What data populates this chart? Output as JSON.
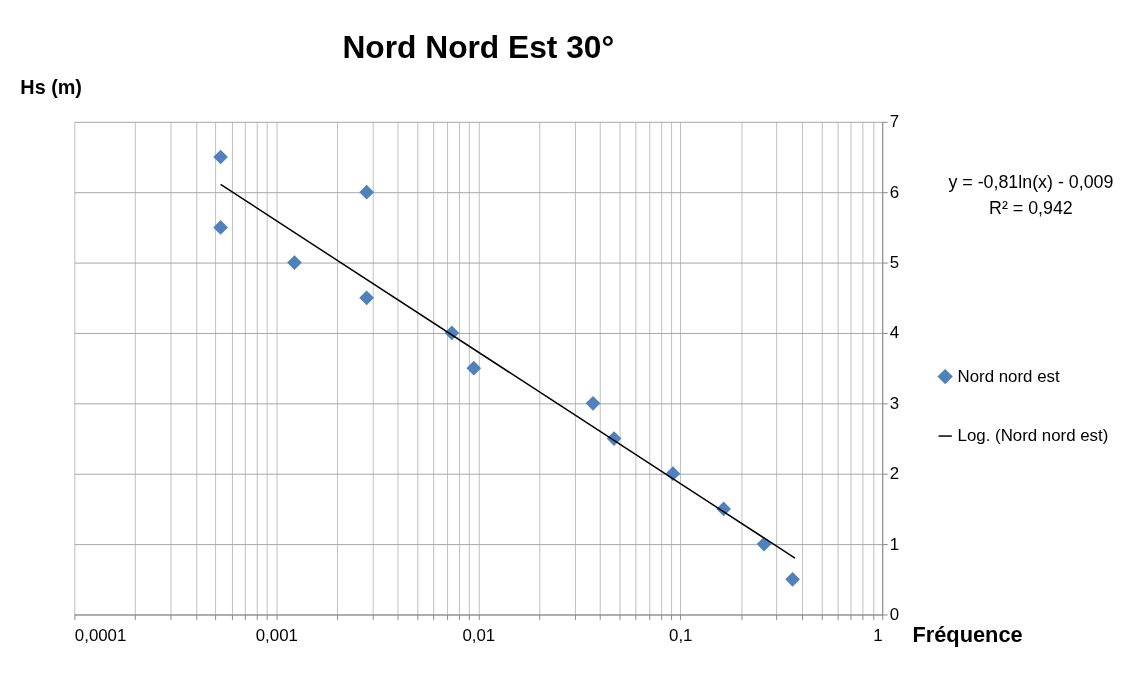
{
  "chart_data": {
    "type": "scatter",
    "title": "Nord Nord Est 30°",
    "xlabel": "Fréquence",
    "ylabel": "Hs (m)",
    "log": "x",
    "grid": true,
    "legend": "right",
    "xlim": [
      0.0001,
      1
    ],
    "ylim": [
      0,
      7
    ],
    "xticks": [
      {
        "value": 0.0001,
        "label": "0,0001"
      },
      {
        "value": 0.0002,
        "label": null
      },
      {
        "value": 0.0003,
        "label": null
      },
      {
        "value": 0.0004,
        "label": null
      },
      {
        "value": 0.0005,
        "label": null
      },
      {
        "value": 0.0006,
        "label": null
      },
      {
        "value": 0.0007,
        "label": null
      },
      {
        "value": 0.0008,
        "label": null
      },
      {
        "value": 0.0009,
        "label": null
      },
      {
        "value": 0.001,
        "label": "0,001"
      },
      {
        "value": 0.002,
        "label": null
      },
      {
        "value": 0.003,
        "label": null
      },
      {
        "value": 0.004,
        "label": null
      },
      {
        "value": 0.005,
        "label": null
      },
      {
        "value": 0.006,
        "label": null
      },
      {
        "value": 0.007,
        "label": null
      },
      {
        "value": 0.008,
        "label": null
      },
      {
        "value": 0.009,
        "label": null
      },
      {
        "value": 0.01,
        "label": "0,01"
      },
      {
        "value": 0.02,
        "label": null
      },
      {
        "value": 0.03,
        "label": null
      },
      {
        "value": 0.04,
        "label": null
      },
      {
        "value": 0.05,
        "label": null
      },
      {
        "value": 0.06,
        "label": null
      },
      {
        "value": 0.07,
        "label": null
      },
      {
        "value": 0.08,
        "label": null
      },
      {
        "value": 0.09,
        "label": null
      },
      {
        "value": 0.1,
        "label": "0,1"
      },
      {
        "value": 0.2,
        "label": null
      },
      {
        "value": 0.3,
        "label": null
      },
      {
        "value": 0.4,
        "label": null
      },
      {
        "value": 0.5,
        "label": null
      },
      {
        "value": 0.6,
        "label": null
      },
      {
        "value": 0.7,
        "label": null
      },
      {
        "value": 0.8,
        "label": null
      },
      {
        "value": 0.9,
        "label": null
      },
      {
        "value": 1,
        "label": "1"
      }
    ],
    "yticks": [
      0,
      1,
      2,
      3,
      4,
      5,
      6,
      7
    ],
    "series": [
      {
        "name": "Nord nord est",
        "marker": "diamond",
        "color": "#4f81bd",
        "x": [
          0.00053,
          0.00053,
          0.00123,
          0.0028,
          0.0028,
          0.0074,
          0.0095,
          0.037,
          0.047,
          0.092,
          0.164,
          0.26,
          0.36
        ],
        "values": [
          6.5,
          5.5,
          5,
          6,
          4.5,
          4,
          3.5,
          3,
          2.5,
          2,
          1.5,
          1,
          0.5
        ]
      },
      {
        "name": "Log. (Nord nord est)",
        "type": "line",
        "marker": "none",
        "line_style": "solid",
        "color": "#000000",
        "x": [
          0.00053,
          0.37
        ],
        "values": [
          6.11,
          0.8
        ]
      }
    ],
    "annotations": [
      "y = -0,81ln(x) - 0,009",
      "R² = 0,942"
    ]
  }
}
